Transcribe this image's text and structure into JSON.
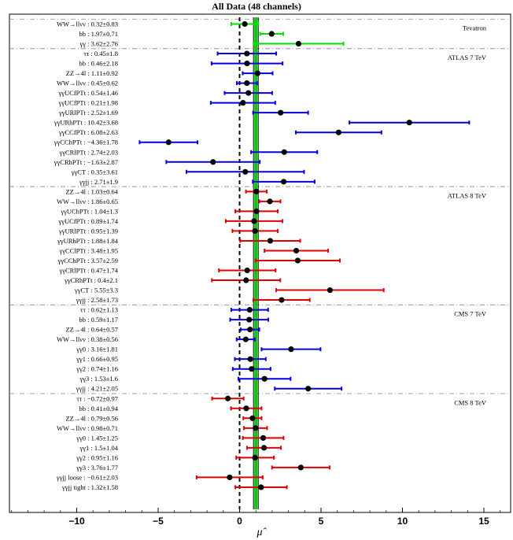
{
  "chart_data": {
    "type": "forest",
    "title": "All Data (48 channels)",
    "xlabel": "μ̂",
    "xlim": [
      -14.5,
      17
    ],
    "xticks": [
      -10,
      -5,
      0,
      5,
      10,
      15
    ],
    "xtick_labels": [
      "−10",
      "−5",
      "0",
      "5",
      "10",
      "15"
    ],
    "reference_lines": {
      "zero": 0,
      "combined": 1.0
    },
    "groups": [
      {
        "name": "Tevatron",
        "color": "#00e000",
        "rows": [
          {
            "label": "WW→llνν : 0.32±0.83",
            "value": 0.32,
            "error": 0.83
          },
          {
            "label": "bb : 1.97±0.71",
            "value": 1.97,
            "error": 0.71
          },
          {
            "label": "γγ : 3.62±2.76",
            "value": 3.62,
            "error": 2.76
          }
        ]
      },
      {
        "name": "ATLAS 7 TeV",
        "color": "#0000e0",
        "rows": [
          {
            "label": "ττ : 0.45±1.8",
            "value": 0.45,
            "error": 1.8
          },
          {
            "label": "bb : 0.46±2.18",
            "value": 0.46,
            "error": 2.18
          },
          {
            "label": "ZZ→4l : 1.11±0.92",
            "value": 1.11,
            "error": 0.92
          },
          {
            "label": "WW→llνν : 0.45±0.62",
            "value": 0.45,
            "error": 0.62
          },
          {
            "label": "γγUCfPTt : 0.54±1.46",
            "value": 0.54,
            "error": 1.46
          },
          {
            "label": "γγUCfPTt : 0.21±1.98",
            "value": 0.21,
            "error": 1.98
          },
          {
            "label": "γγURlPTt : 2.52±1.69",
            "value": 2.52,
            "error": 1.69
          },
          {
            "label": "γγURhPTt : 10.42±3.68",
            "value": 10.42,
            "error": 3.68
          },
          {
            "label": "γγCCfPTt : 6.08±2.63",
            "value": 6.08,
            "error": 2.63
          },
          {
            "label": "γγCChPTt : −4.36±1.78",
            "value": -4.36,
            "error": 1.78
          },
          {
            "label": "γγCRlPTt : 2.74±2.03",
            "value": 2.74,
            "error": 2.03
          },
          {
            "label": "γγCRhPTt : −1.63±2.87",
            "value": -1.63,
            "error": 2.87
          },
          {
            "label": "γγCT : 0.35±3.61",
            "value": 0.35,
            "error": 3.61
          },
          {
            "label": "γγjj : 2.71±1.9",
            "value": 2.71,
            "error": 1.9
          }
        ]
      },
      {
        "name": "ATLAS 8 TeV",
        "color": "#e00000",
        "rows": [
          {
            "label": "ZZ→4l : 1.03±0.64",
            "value": 1.03,
            "error": 0.64
          },
          {
            "label": "WW→llνν : 1.86±0.65",
            "value": 1.86,
            "error": 0.65
          },
          {
            "label": "γγUChPTt : 1.04±1.3",
            "value": 1.04,
            "error": 1.3
          },
          {
            "label": "γγUCfPTt : 0.89±1.74",
            "value": 0.89,
            "error": 1.74
          },
          {
            "label": "γγURlPTt : 0.95±1.39",
            "value": 0.95,
            "error": 1.39
          },
          {
            "label": "γγURhPTt : 1.88±1.84",
            "value": 1.88,
            "error": 1.84
          },
          {
            "label": "γγCClPTt : 3.48±1.95",
            "value": 3.48,
            "error": 1.95
          },
          {
            "label": "γγCChPTt : 3.57±2.59",
            "value": 3.57,
            "error": 2.59
          },
          {
            "label": "γγCRlPTt : 0.47±1.74",
            "value": 0.47,
            "error": 1.74
          },
          {
            "label": "γγCRhPTt : 0.4±2.1",
            "value": 0.4,
            "error": 2.1
          },
          {
            "label": "γγCT : 5.55±3.3",
            "value": 5.55,
            "error": 3.3
          },
          {
            "label": "γγjj : 2.58±1.73",
            "value": 2.58,
            "error": 1.73
          }
        ]
      },
      {
        "name": "CMS 7 TeV",
        "color": "#0000e0",
        "rows": [
          {
            "label": "ττ : 0.62±1.13",
            "value": 0.62,
            "error": 1.13
          },
          {
            "label": "bb : 0.59±1.17",
            "value": 0.59,
            "error": 1.17
          },
          {
            "label": "ZZ→4l : 0.64±0.57",
            "value": 0.64,
            "error": 0.57
          },
          {
            "label": "WW→llνν : 0.38±0.56",
            "value": 0.38,
            "error": 0.56
          },
          {
            "label": "γγ0 : 3.16±1.81",
            "value": 3.16,
            "error": 1.81
          },
          {
            "label": "γγ1 : 0.66±0.95",
            "value": 0.66,
            "error": 0.95
          },
          {
            "label": "γγ2 : 0.74±1.16",
            "value": 0.74,
            "error": 1.16
          },
          {
            "label": "γγ3 : 1.53±1.6",
            "value": 1.53,
            "error": 1.6
          },
          {
            "label": "γγjj : 4.21±2.05",
            "value": 4.21,
            "error": 2.05
          }
        ]
      },
      {
        "name": "CMS 8 TeV",
        "color": "#e00000",
        "rows": [
          {
            "label": "ττ : −0.72±0.97",
            "value": -0.72,
            "error": 0.97
          },
          {
            "label": "bb : 0.41±0.94",
            "value": 0.41,
            "error": 0.94
          },
          {
            "label": "ZZ→4l : 0.79±0.56",
            "value": 0.79,
            "error": 0.56
          },
          {
            "label": "WW→llνν : 0.98±0.71",
            "value": 0.98,
            "error": 0.71
          },
          {
            "label": "γγ0 : 1.45±1.25",
            "value": 1.45,
            "error": 1.25
          },
          {
            "label": "γγ1 : 1.5±1.04",
            "value": 1.5,
            "error": 1.04
          },
          {
            "label": "γγ2 : 0.95±1.16",
            "value": 0.95,
            "error": 1.16
          },
          {
            "label": "γγ3 : 3.76±1.77",
            "value": 3.76,
            "error": 1.77
          },
          {
            "label": "γγjj loose : −0.61±2.03",
            "value": -0.61,
            "error": 2.03
          },
          {
            "label": "γγjj tight : 1.32±1.58",
            "value": 1.32,
            "error": 1.58
          }
        ]
      }
    ]
  }
}
